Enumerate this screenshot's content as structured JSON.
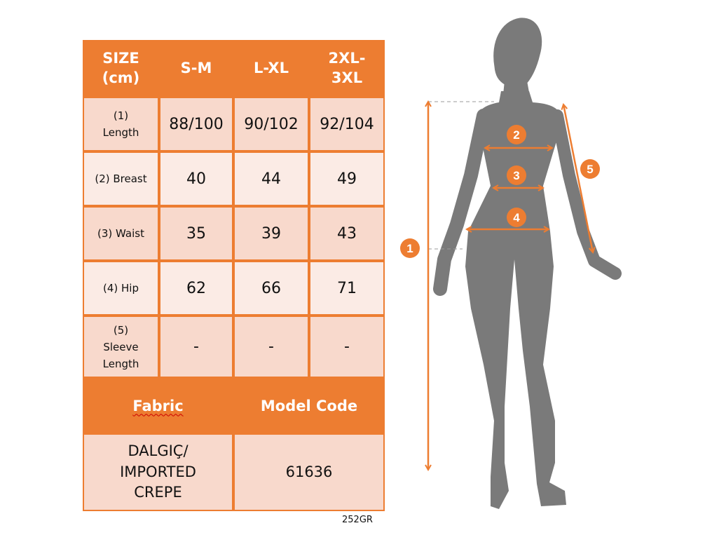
{
  "table": {
    "header": [
      "SIZE\n(cm)",
      "S-M",
      "L-XL",
      "2XL-\n3XL"
    ],
    "rows": [
      {
        "label": "(1)\nLength",
        "values": [
          "88/100",
          "90/102",
          "92/104"
        ]
      },
      {
        "label": "(2) Breast",
        "values": [
          "40",
          "44",
          "49"
        ]
      },
      {
        "label": "(3) Waist",
        "values": [
          "35",
          "39",
          "43"
        ]
      },
      {
        "label": "(4) Hip",
        "values": [
          "62",
          "66",
          "71"
        ]
      },
      {
        "label": "(5)\nSleeve\nLength",
        "values": [
          "-",
          "-",
          "-"
        ]
      }
    ],
    "fabric_label": "Fabric",
    "model_code_label": "Model Code",
    "fabric_value": "DALGIÇ/\nIMPORTED\nCREPE",
    "model_code_value": "61636"
  },
  "footer_code": "252GR",
  "figure": {
    "markers": [
      "1",
      "2",
      "3",
      "4",
      "5"
    ]
  },
  "colors": {
    "accent": "#ED7D31",
    "row_dark": "#F8D9CC",
    "row_light": "#FBEBE5",
    "silhouette": "#7A7A7A"
  }
}
